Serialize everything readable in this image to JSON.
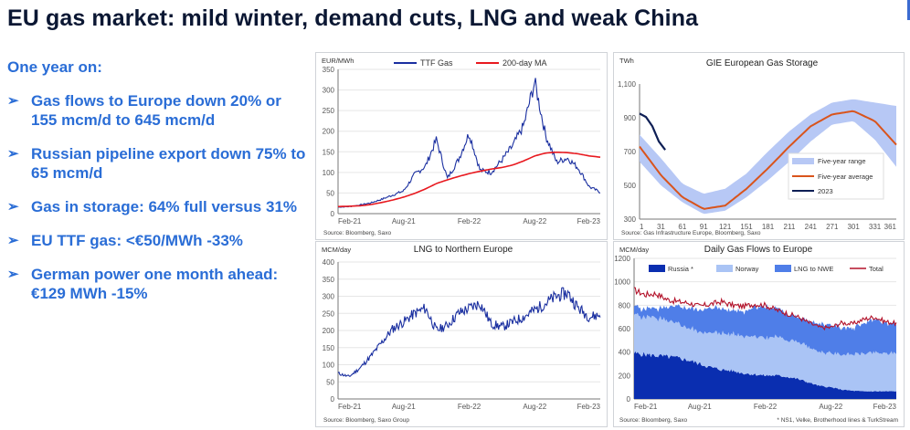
{
  "slide": {
    "title": "EU gas market: mild winter, demand cuts, LNG and weak China",
    "subtitle": "One year on:",
    "bullets": [
      "Gas flows to Europe down 20% or 155 mcm/d to 645 mcm/d",
      "Russian pipeline export down 75% to 65 mcm/d",
      "Gas in storage: 64% full versus 31%",
      "EU TTF gas: <€50/MWh -33%",
      "German power one month ahead: €129 MWh -15%"
    ],
    "bullet_marker": "➢"
  },
  "colors": {
    "title": "#0b1733",
    "accent": "#2a6dd6",
    "ttf": "#1a2fa0",
    "ma": "#e8191f",
    "storage_band": "#b7c8f5",
    "storage_avg": "#d9541c",
    "storage_2023": "#0e1f55",
    "lng": "#1a2fa0",
    "russia": "#0a2eb0",
    "norway": "#aac4f5",
    "lng_nwe": "#4f7ee8",
    "total": "#b3122a"
  },
  "chart_data": [
    {
      "id": "ttf",
      "type": "line",
      "unit_label": "EUR/MWh",
      "title": "",
      "legend": [
        "TTF Gas",
        "200-day MA"
      ],
      "legend_position": "top",
      "x_ticks": [
        "Feb-21",
        "Aug-21",
        "Feb-22",
        "Aug-22",
        "Feb-23"
      ],
      "ylim": [
        0,
        350
      ],
      "y_ticks": [
        0,
        50,
        100,
        150,
        200,
        250,
        300,
        350
      ],
      "source": "Source: Bloomberg, Saxo",
      "x": [
        0,
        1,
        2,
        3,
        4,
        5,
        6,
        7,
        8,
        9,
        10,
        11,
        12,
        13,
        14,
        15,
        16,
        17,
        18,
        19,
        20,
        21,
        22,
        23,
        24
      ],
      "series": [
        {
          "name": "TTF Gas",
          "values": [
            16,
            17,
            21,
            26,
            35,
            45,
            55,
            95,
            115,
            180,
            85,
            130,
            195,
            105,
            100,
            130,
            165,
            215,
            320,
            190,
            125,
            135,
            110,
            65,
            52
          ]
        },
        {
          "name": "200-day MA",
          "values": [
            17,
            18,
            19,
            22,
            27,
            33,
            40,
            49,
            60,
            73,
            82,
            90,
            97,
            103,
            108,
            112,
            118,
            128,
            140,
            147,
            149,
            148,
            145,
            140,
            137
          ]
        }
      ]
    },
    {
      "id": "storage",
      "type": "area",
      "unit_label": "TWh",
      "title": "GIE European Gas Storage",
      "legend": [
        "Five-year range",
        "Five-year average",
        "2023"
      ],
      "legend_position": "bottom-right",
      "x_ticks": [
        "1",
        "31",
        "61",
        "91",
        "121",
        "151",
        "181",
        "211",
        "241",
        "271",
        "301",
        "331",
        "361"
      ],
      "ylim": [
        300,
        1100
      ],
      "y_ticks": [
        "1,100",
        "900",
        "700",
        "500",
        "300"
      ],
      "source": "Source: Gas Infrastructure Europe, Bloomberg, Saxo",
      "x": [
        1,
        31,
        61,
        91,
        121,
        151,
        181,
        211,
        241,
        271,
        301,
        331,
        361
      ],
      "series": [
        {
          "name": "Five-year range (low)",
          "values": [
            640,
            500,
            400,
            330,
            350,
            430,
            530,
            640,
            760,
            860,
            880,
            770,
            610
          ]
        },
        {
          "name": "Five-year range (high)",
          "values": [
            800,
            660,
            510,
            450,
            480,
            570,
            700,
            820,
            920,
            990,
            1010,
            990,
            970
          ]
        },
        {
          "name": "Five-year average",
          "values": [
            730,
            560,
            430,
            360,
            380,
            480,
            600,
            730,
            850,
            920,
            940,
            880,
            740
          ]
        },
        {
          "name": "2023",
          "values": [
            925,
            905,
            850,
            760,
            710
          ],
          "x": [
            1,
            10,
            19,
            28,
            37
          ]
        }
      ]
    },
    {
      "id": "lng",
      "type": "line",
      "unit_label": "MCM/day",
      "title": "LNG to Northern Europe",
      "x_ticks": [
        "Feb-21",
        "Aug-21",
        "Feb-22",
        "Aug-22",
        "Feb-23"
      ],
      "ylim": [
        0,
        400
      ],
      "y_ticks": [
        0,
        50,
        100,
        150,
        200,
        250,
        300,
        350,
        400
      ],
      "source": "Source: Bloomberg, Saxo Group",
      "x": [
        0,
        1,
        2,
        3,
        4,
        5,
        6,
        7,
        8,
        9,
        10,
        11,
        12,
        13,
        14,
        15,
        16,
        17,
        18,
        19,
        20,
        21,
        22,
        23,
        24
      ],
      "series": [
        {
          "name": "LNG",
          "values": [
            75,
            65,
            90,
            125,
            165,
            205,
            225,
            250,
            265,
            200,
            215,
            250,
            265,
            280,
            220,
            210,
            225,
            240,
            260,
            280,
            300,
            310,
            265,
            240,
            245
          ]
        }
      ]
    },
    {
      "id": "flows",
      "type": "area",
      "unit_label": "MCM/day",
      "title": "Daily Gas Flows to Europe",
      "legend": [
        "Russia *",
        "Norway",
        "LNG to NWE",
        "Total"
      ],
      "legend_position": "top",
      "x_ticks": [
        "Feb-21",
        "Aug-21",
        "Feb-22",
        "Aug-22",
        "Feb-23"
      ],
      "ylim": [
        0,
        1200
      ],
      "y_ticks": [
        0,
        200,
        400,
        600,
        800,
        1000,
        1200
      ],
      "source": "Source: Bloomberg, Saxo",
      "note": "* NS1, Velke, Brotherhood lines & TurkStream",
      "x": [
        0,
        1,
        2,
        3,
        4,
        5,
        6,
        7,
        8,
        9,
        10,
        11,
        12,
        13,
        14,
        15,
        16,
        17,
        18,
        19,
        20,
        21,
        22,
        23,
        24
      ],
      "series": [
        {
          "name": "Russia *",
          "values": [
            390,
            380,
            370,
            360,
            350,
            330,
            300,
            270,
            250,
            240,
            220,
            210,
            200,
            200,
            190,
            170,
            140,
            110,
            100,
            80,
            70,
            65,
            65,
            65,
            65
          ]
        },
        {
          "name": "Norway",
          "values": [
            330,
            320,
            320,
            300,
            290,
            280,
            270,
            300,
            310,
            320,
            320,
            320,
            320,
            330,
            320,
            320,
            300,
            290,
            290,
            300,
            310,
            320,
            330,
            320,
            330
          ]
        },
        {
          "name": "LNG to NWE",
          "values": [
            70,
            70,
            80,
            110,
            150,
            170,
            190,
            210,
            210,
            200,
            210,
            250,
            260,
            250,
            230,
            210,
            230,
            240,
            240,
            230,
            220,
            260,
            280,
            260,
            250
          ]
        },
        {
          "name": "Total",
          "values": [
            930,
            890,
            900,
            850,
            830,
            820,
            790,
            810,
            830,
            800,
            790,
            810,
            800,
            760,
            730,
            700,
            650,
            610,
            610,
            650,
            640,
            680,
            700,
            660,
            645
          ]
        }
      ]
    }
  ]
}
